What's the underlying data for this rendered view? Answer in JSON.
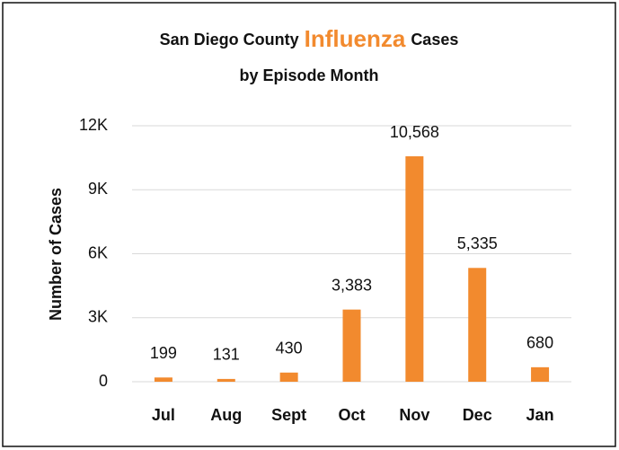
{
  "chart_data": {
    "type": "bar",
    "title": {
      "prefix": "San Diego County",
      "highlight": "Influenza",
      "suffix": "Cases",
      "line2": "by Episode Month"
    },
    "y_label": "Number of Cases",
    "categories": [
      "Jul",
      "Aug",
      "Sept",
      "Oct",
      "Nov",
      "Dec",
      "Jan"
    ],
    "values": [
      199,
      131,
      430,
      3383,
      10568,
      5335,
      680
    ],
    "value_labels": [
      "199",
      "131",
      "430",
      "3,383",
      "10,568",
      "5,335",
      "680"
    ],
    "color": "#f28a2e",
    "highlight_color": "#f28a2e",
    "ylim": [
      0,
      12000
    ],
    "yticks": [
      0,
      {
        "value": 3000,
        "label": "3K"
      },
      {
        "value": 6000,
        "label": "6K"
      },
      {
        "value": 9000,
        "label": "9K"
      },
      {
        "value": 12000,
        "label": "12K"
      }
    ],
    "grid": true
  }
}
